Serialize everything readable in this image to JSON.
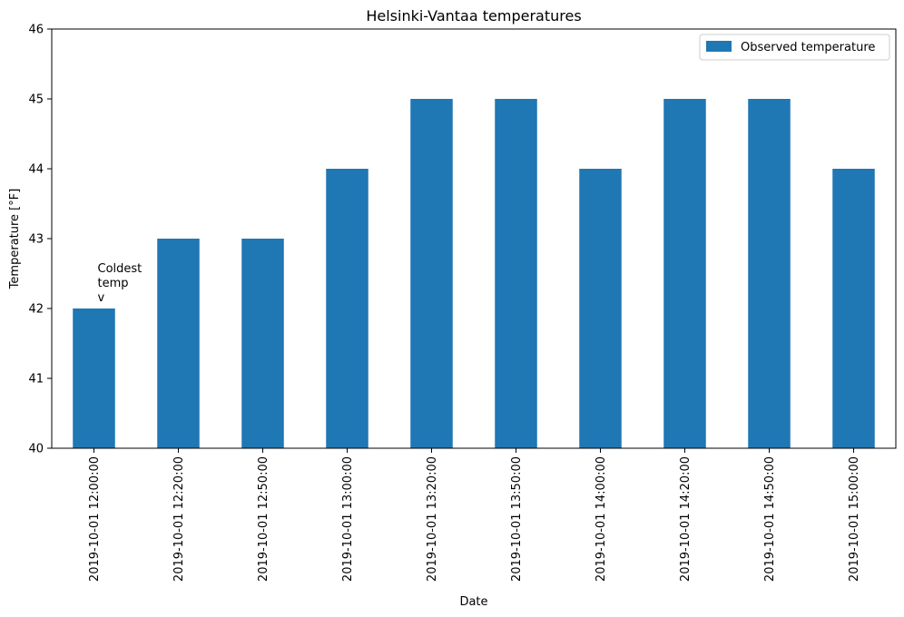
{
  "chart_data": {
    "type": "bar",
    "title": "Helsinki-Vantaa temperatures",
    "xlabel": "Date",
    "ylabel": "Temperature [°F]",
    "ylim": [
      40,
      46
    ],
    "yticks": [
      40,
      41,
      42,
      43,
      44,
      45,
      46
    ],
    "categories": [
      "2019-10-01 12:00:00",
      "2019-10-01 12:20:00",
      "2019-10-01 12:50:00",
      "2019-10-01 13:00:00",
      "2019-10-01 13:20:00",
      "2019-10-01 13:50:00",
      "2019-10-01 14:00:00",
      "2019-10-01 14:20:00",
      "2019-10-01 14:50:00",
      "2019-10-01 15:00:00"
    ],
    "series": [
      {
        "name": "Observed temperature",
        "color": "#1f77b4",
        "values": [
          42,
          43,
          43,
          44,
          45,
          45,
          44,
          45,
          45,
          44
        ]
      }
    ],
    "legend": {
      "position": "top-right"
    },
    "grid": false,
    "annotations": [
      {
        "lines": [
          "Coldest",
          "temp",
          "v"
        ],
        "x_index": 0,
        "y": 42
      }
    ]
  }
}
